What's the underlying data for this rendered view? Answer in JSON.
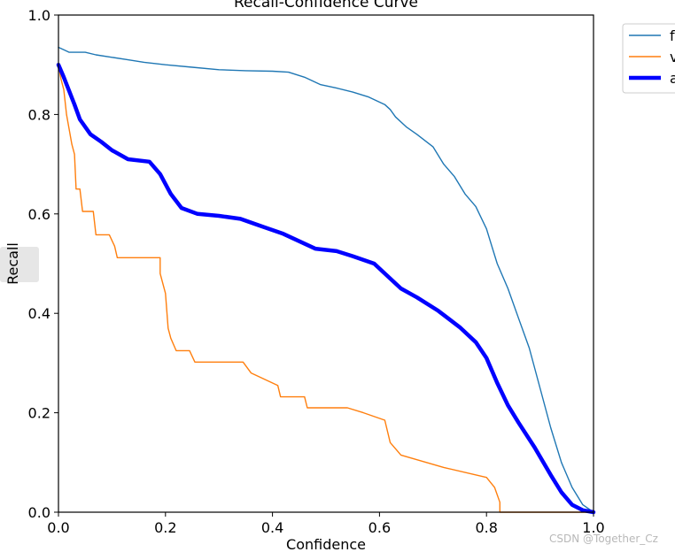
{
  "chart_data": {
    "type": "line",
    "title": "Recall-Confidence Curve",
    "xlabel": "Confidence",
    "ylabel": "Recall",
    "xlim": [
      0.0,
      1.0
    ],
    "ylim": [
      0.0,
      1.0
    ],
    "xticks": [
      "0.0",
      "0.2",
      "0.4",
      "0.6",
      "0.8",
      "1.0"
    ],
    "yticks": [
      "0.0",
      "0.2",
      "0.4",
      "0.6",
      "0.8",
      "1.0"
    ],
    "grid": false,
    "legend": {
      "placement": "outside top-right"
    },
    "series": [
      {
        "name": "f",
        "color": "#1f77b4",
        "line_width": "thin",
        "points": [
          [
            0.0,
            0.935
          ],
          [
            0.01,
            0.93
          ],
          [
            0.02,
            0.925
          ],
          [
            0.05,
            0.925
          ],
          [
            0.07,
            0.92
          ],
          [
            0.1,
            0.915
          ],
          [
            0.13,
            0.91
          ],
          [
            0.16,
            0.905
          ],
          [
            0.2,
            0.9
          ],
          [
            0.25,
            0.895
          ],
          [
            0.3,
            0.89
          ],
          [
            0.35,
            0.888
          ],
          [
            0.4,
            0.887
          ],
          [
            0.43,
            0.885
          ],
          [
            0.46,
            0.875
          ],
          [
            0.49,
            0.86
          ],
          [
            0.52,
            0.853
          ],
          [
            0.55,
            0.845
          ],
          [
            0.58,
            0.835
          ],
          [
            0.61,
            0.82
          ],
          [
            0.62,
            0.81
          ],
          [
            0.63,
            0.795
          ],
          [
            0.65,
            0.775
          ],
          [
            0.67,
            0.76
          ],
          [
            0.7,
            0.735
          ],
          [
            0.72,
            0.7
          ],
          [
            0.74,
            0.675
          ],
          [
            0.76,
            0.64
          ],
          [
            0.78,
            0.615
          ],
          [
            0.8,
            0.57
          ],
          [
            0.81,
            0.535
          ],
          [
            0.82,
            0.5
          ],
          [
            0.84,
            0.45
          ],
          [
            0.86,
            0.39
          ],
          [
            0.88,
            0.33
          ],
          [
            0.9,
            0.25
          ],
          [
            0.92,
            0.17
          ],
          [
            0.94,
            0.1
          ],
          [
            0.96,
            0.05
          ],
          [
            0.98,
            0.015
          ],
          [
            1.0,
            0.0
          ]
        ]
      },
      {
        "name": "v",
        "color": "#ff7f0e",
        "line_width": "thin",
        "points": [
          [
            0.0,
            0.9
          ],
          [
            0.005,
            0.87
          ],
          [
            0.01,
            0.85
          ],
          [
            0.015,
            0.8
          ],
          [
            0.02,
            0.77
          ],
          [
            0.025,
            0.74
          ],
          [
            0.03,
            0.72
          ],
          [
            0.033,
            0.65
          ],
          [
            0.04,
            0.65
          ],
          [
            0.045,
            0.605
          ],
          [
            0.065,
            0.605
          ],
          [
            0.07,
            0.558
          ],
          [
            0.095,
            0.558
          ],
          [
            0.105,
            0.535
          ],
          [
            0.11,
            0.512
          ],
          [
            0.19,
            0.512
          ],
          [
            0.19,
            0.48
          ],
          [
            0.2,
            0.44
          ],
          [
            0.205,
            0.37
          ],
          [
            0.21,
            0.35
          ],
          [
            0.22,
            0.325
          ],
          [
            0.245,
            0.325
          ],
          [
            0.255,
            0.302
          ],
          [
            0.345,
            0.302
          ],
          [
            0.36,
            0.28
          ],
          [
            0.41,
            0.255
          ],
          [
            0.415,
            0.232
          ],
          [
            0.46,
            0.232
          ],
          [
            0.465,
            0.21
          ],
          [
            0.54,
            0.21
          ],
          [
            0.57,
            0.2
          ],
          [
            0.61,
            0.185
          ],
          [
            0.62,
            0.14
          ],
          [
            0.64,
            0.115
          ],
          [
            0.72,
            0.09
          ],
          [
            0.8,
            0.07
          ],
          [
            0.815,
            0.05
          ],
          [
            0.825,
            0.02
          ],
          [
            0.825,
            0.0
          ],
          [
            1.0,
            0.0
          ]
        ]
      },
      {
        "name": "a",
        "color": "#0000ff",
        "line_width": "thick",
        "points": [
          [
            0.0,
            0.9
          ],
          [
            0.01,
            0.875
          ],
          [
            0.03,
            0.82
          ],
          [
            0.04,
            0.79
          ],
          [
            0.06,
            0.76
          ],
          [
            0.08,
            0.745
          ],
          [
            0.1,
            0.728
          ],
          [
            0.13,
            0.71
          ],
          [
            0.17,
            0.705
          ],
          [
            0.19,
            0.68
          ],
          [
            0.21,
            0.64
          ],
          [
            0.23,
            0.612
          ],
          [
            0.26,
            0.6
          ],
          [
            0.3,
            0.596
          ],
          [
            0.34,
            0.59
          ],
          [
            0.38,
            0.575
          ],
          [
            0.42,
            0.56
          ],
          [
            0.45,
            0.545
          ],
          [
            0.48,
            0.53
          ],
          [
            0.52,
            0.525
          ],
          [
            0.55,
            0.515
          ],
          [
            0.59,
            0.5
          ],
          [
            0.62,
            0.47
          ],
          [
            0.64,
            0.45
          ],
          [
            0.67,
            0.432
          ],
          [
            0.71,
            0.405
          ],
          [
            0.75,
            0.372
          ],
          [
            0.78,
            0.342
          ],
          [
            0.8,
            0.31
          ],
          [
            0.82,
            0.26
          ],
          [
            0.84,
            0.215
          ],
          [
            0.86,
            0.18
          ],
          [
            0.89,
            0.13
          ],
          [
            0.92,
            0.075
          ],
          [
            0.94,
            0.04
          ],
          [
            0.96,
            0.015
          ],
          [
            0.98,
            0.004
          ],
          [
            1.0,
            0.0
          ]
        ]
      }
    ]
  },
  "watermark": "CSDN @Together_Cz"
}
